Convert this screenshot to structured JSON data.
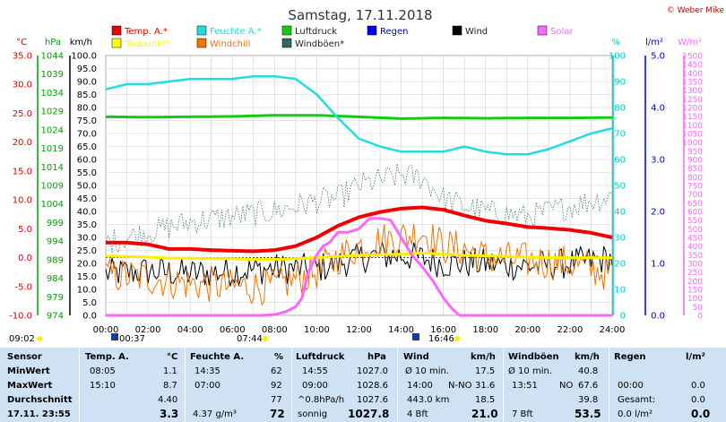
{
  "chart_data": {
    "type": "line",
    "title": "Samstag, 17.11.2018",
    "copyright": "© Weber Mike",
    "x": {
      "ticks": [
        "00:00",
        "02:00",
        "04:00",
        "06:00",
        "08:00",
        "10:00",
        "12:00",
        "14:00",
        "16:00",
        "18:00",
        "20:00",
        "22:00",
        "24:00"
      ],
      "range": [
        0,
        24
      ]
    },
    "axes": {
      "temp": {
        "unit": "°C",
        "ylim": [
          -10,
          35
        ],
        "ticks": [
          "-10.0",
          "-5.0",
          "0.0",
          "5.0",
          "10.0",
          "15.0",
          "20.0",
          "25.0",
          "30.0",
          "35.0"
        ],
        "color": "#e00000"
      },
      "pressure": {
        "unit": "hPa",
        "ylim": [
          974,
          1044
        ],
        "ticks": [
          "974",
          "979",
          "984",
          "989",
          "994",
          "999",
          "1004",
          "1009",
          "1014",
          "1019",
          "1024",
          "1029",
          "1034",
          "1039",
          "1044"
        ],
        "color": "#00a000"
      },
      "wind": {
        "unit": "km/h",
        "ylim": [
          0,
          100
        ],
        "ticks": [
          "0.0",
          "5.0",
          "10.0",
          "15.0",
          "20.0",
          "25.0",
          "30.0",
          "35.0",
          "40.0",
          "45.0",
          "50.0",
          "55.0",
          "60.0",
          "65.0",
          "70.0",
          "75.0",
          "80.0",
          "85.0",
          "90.0",
          "95.0",
          "100.0"
        ],
        "color": "#000000"
      },
      "humidity": {
        "unit": "%",
        "ylim": [
          0,
          100
        ],
        "ticks": [
          "0",
          "10",
          "20",
          "30",
          "40",
          "50",
          "60",
          "70",
          "80",
          "90",
          "100"
        ],
        "color": "#00cccc"
      },
      "rain": {
        "unit": "l/m²",
        "ylim": [
          0,
          5
        ],
        "ticks": [
          "0.0",
          "1.0",
          "2.0",
          "3.0",
          "4.0",
          "5.0"
        ],
        "color": "#0000cc"
      },
      "solar": {
        "unit": "W/m²",
        "ylim": [
          0,
          1500
        ],
        "ticks": [
          "0",
          "50",
          "100",
          "150",
          "200",
          "250",
          "300",
          "350",
          "400",
          "450",
          "500",
          "550",
          "600",
          "650",
          "700",
          "750",
          "800",
          "850",
          "900",
          "950",
          "1000",
          "1050",
          "1100",
          "1150",
          "1200",
          "1250",
          "1300",
          "1350",
          "1400",
          "1450",
          "1500"
        ],
        "color": "#ff66ff"
      }
    },
    "legend": [
      {
        "name": "Temp. A.*",
        "color": "#ee0000"
      },
      {
        "name": "Feuchte A.*",
        "color": "#22dddd"
      },
      {
        "name": "Luftdruck",
        "color": "#11cc11"
      },
      {
        "name": "Regen",
        "color": "#0000ee"
      },
      {
        "name": "Wind",
        "color": "#000000"
      },
      {
        "name": "Solar",
        "color": "#ff66ff"
      },
      {
        "name": "Taupunkt*",
        "color": "#ffff00"
      },
      {
        "name": "Windchill",
        "color": "#ee7700"
      },
      {
        "name": "Windböen*",
        "color": "#336666"
      }
    ],
    "series": [
      {
        "name": "Temp. A.*",
        "axis": "temp",
        "color": "#ee0000",
        "x": [
          0,
          1,
          2,
          3,
          4,
          5,
          6,
          7,
          8,
          9,
          10,
          11,
          12,
          13,
          14,
          15,
          16,
          17,
          18,
          19,
          20,
          21,
          22,
          23,
          24
        ],
        "values": [
          2.6,
          2.6,
          2.3,
          1.5,
          1.5,
          1.3,
          1.2,
          1.1,
          1.3,
          2.0,
          3.5,
          5.5,
          7.0,
          7.9,
          8.5,
          8.7,
          8.3,
          7.3,
          6.4,
          5.9,
          5.3,
          5.1,
          4.8,
          4.3,
          3.5
        ]
      },
      {
        "name": "Taupunkt*",
        "axis": "temp",
        "color": "#ffee00",
        "x": [
          0,
          1,
          2,
          3,
          4,
          5,
          6,
          7,
          8,
          9,
          10,
          11,
          12,
          13,
          14,
          15,
          16,
          17,
          18,
          19,
          20,
          21,
          22,
          23,
          24
        ],
        "values": [
          0.3,
          0.2,
          0.1,
          -0.1,
          -0.1,
          -0.2,
          -0.2,
          -0.3,
          -0.3,
          -0.2,
          0.0,
          0.2,
          0.4,
          0.5,
          0.6,
          0.8,
          0.6,
          0.4,
          0.3,
          0.2,
          0.1,
          0.0,
          0.0,
          0.0,
          0.0
        ]
      },
      {
        "name": "Luftdruck",
        "axis": "pressure",
        "color": "#11cc11",
        "x": [
          0,
          2,
          4,
          6,
          8,
          10,
          12,
          14,
          16,
          18,
          20,
          22,
          24
        ],
        "values": [
          1027.5,
          1027.4,
          1027.5,
          1027.6,
          1027.9,
          1027.9,
          1027.5,
          1027.0,
          1027.2,
          1027.1,
          1027.2,
          1027.2,
          1027.3
        ]
      },
      {
        "name": "Feuchte A.*",
        "axis": "humidity",
        "color": "#22dddd",
        "x": [
          0,
          1,
          2,
          3,
          4,
          5,
          6,
          7,
          8,
          9,
          10,
          11,
          12,
          13,
          14,
          15,
          16,
          17,
          18,
          19,
          20,
          21,
          22,
          23,
          24
        ],
        "values": [
          87,
          89,
          89,
          90,
          91,
          91,
          91,
          92,
          92,
          91,
          85,
          76,
          68,
          65,
          63,
          63,
          63,
          65,
          63,
          62,
          62,
          64,
          67,
          70,
          72
        ]
      },
      {
        "name": "Solar",
        "axis": "solar",
        "color": "#ff66ff",
        "x": [
          0,
          7.4,
          8,
          8.5,
          9,
          9.3,
          9.6,
          10,
          10.3,
          10.6,
          11,
          11.5,
          12,
          12.5,
          13,
          13.5,
          14,
          14.5,
          15,
          15.5,
          16,
          16.4,
          16.75,
          24
        ],
        "values": [
          0,
          0,
          5,
          20,
          50,
          100,
          250,
          350,
          400,
          420,
          480,
          480,
          500,
          560,
          560,
          550,
          450,
          350,
          280,
          200,
          100,
          40,
          0,
          0
        ]
      }
    ],
    "noisy_series": [
      {
        "name": "Wind",
        "axis": "wind",
        "color": "#000000",
        "x": [
          0,
          2,
          4,
          6,
          8,
          10,
          11,
          12,
          13,
          14,
          15,
          16,
          17,
          18,
          20,
          22,
          24
        ],
        "values": [
          16,
          17,
          16,
          17,
          18,
          18,
          20,
          22,
          23,
          23,
          22,
          20,
          20,
          20,
          19,
          20,
          22
        ]
      },
      {
        "name": "Windchill",
        "axis": "temp",
        "color": "#ee7700",
        "x": [
          0,
          2,
          4,
          6,
          8,
          10,
          11,
          12,
          13,
          14,
          15,
          16,
          17,
          18,
          20,
          22,
          24
        ],
        "values": [
          -3.0,
          -3.5,
          -4.5,
          -5.0,
          -5.0,
          -2.5,
          0.0,
          2.0,
          3.0,
          3.5,
          4.5,
          2.0,
          1.5,
          0.0,
          -0.5,
          -1.0,
          -3.0
        ]
      },
      {
        "name": "Windböen*",
        "axis": "wind",
        "color": "#336666",
        "x": [
          0,
          2,
          4,
          6,
          8,
          10,
          11,
          12,
          13,
          14,
          15,
          16,
          17,
          18,
          20,
          22,
          24
        ],
        "values": [
          28,
          32,
          36,
          38,
          40,
          44,
          45,
          50,
          52,
          54,
          53,
          45,
          42,
          40,
          38,
          42,
          46
        ]
      }
    ],
    "markers": {
      "left_time": "09:02",
      "sunrise": "00:37",
      "solar_start": "07:44",
      "sunset": "16:46"
    }
  },
  "table": {
    "rows": {
      "r1": "MinWert",
      "r2": "MaxWert",
      "r3": "Durchschnitt",
      "r4": "17.11. 23:55"
    },
    "sensor": "Sensor",
    "temp": {
      "header": "Temp. A.",
      "unit": "°C",
      "min_time": "08:05",
      "min": "1.1",
      "max_time": "15:10",
      "max": "8.7",
      "avg": "4.40",
      "current": "3.3"
    },
    "humidity": {
      "header": "Feuchte A.",
      "unit": "%",
      "min_time": "14:35",
      "min": "62",
      "max_time": "07:00",
      "max": "92",
      "avg": "77",
      "extra": "4.37 g/m³",
      "current": "72"
    },
    "pressure": {
      "header": "Luftdruck",
      "unit": "hPa",
      "min_time": "14:55",
      "min": "1027.0",
      "max_time": "09:00",
      "max": "1028.6",
      "trend": "^0.8hPa/h",
      "avg": "1027.6",
      "weather": "sonnig",
      "current": "1027.8"
    },
    "wind": {
      "header": "Wind",
      "unit": "km/h",
      "r1_label": "Ø 10 min.",
      "r1_val": "17.5",
      "r2_label": "14:00",
      "r2_dir": "N-NO",
      "r2_val": "31.6",
      "r3_label": "443.0 km",
      "r3_val": "18.5",
      "r4_label": "4 Bft",
      "r4_val": "21.0"
    },
    "gust": {
      "header": "Windböen",
      "unit": "km/h",
      "r1_label": "Ø 10 min.",
      "r1_val": "40.8",
      "r2_label": "13:51",
      "r2_dir": "NO",
      "r2_val": "67.6",
      "r3_val": "39.8",
      "r4_label": "7 Bft",
      "r4_val": "53.5"
    },
    "rain": {
      "header": "Regen",
      "unit": "l/m²",
      "r2_label": "00:00",
      "r2_val": "0.0",
      "r3_label": "Gesamt:",
      "r3_val": "0.0",
      "r4_label": "0.0 l/m²",
      "r4_val": "0.0"
    }
  }
}
